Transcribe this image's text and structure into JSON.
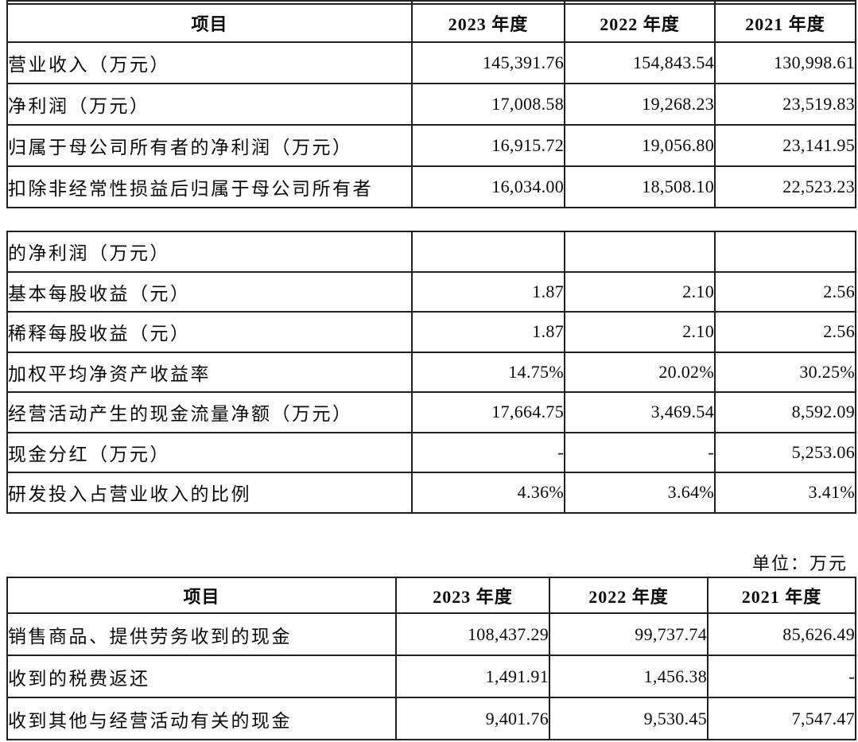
{
  "unit_label": "单位：万元",
  "summary_table": {
    "headers": {
      "item": "项目",
      "y2023": "2023 年度",
      "y2022": "2022 年度",
      "y2021": "2021 年度"
    },
    "rows": [
      {
        "label": "营业收入（万元）",
        "v2023": "145,391.76",
        "v2022": "154,843.54",
        "v2021": "130,998.61"
      },
      {
        "label": "净利润（万元）",
        "v2023": "17,008.58",
        "v2022": "19,268.23",
        "v2021": "23,519.83"
      },
      {
        "label": "归属于母公司所有者的净利润（万元）",
        "v2023": "16,915.72",
        "v2022": "19,056.80",
        "v2021": "23,141.95"
      },
      {
        "label": "扣除非经常性损益后归属于母公司所有者",
        "v2023": "16,034.00",
        "v2022": "18,508.10",
        "v2021": "22,523.23"
      }
    ]
  },
  "summary_table_continued": {
    "rows": [
      {
        "label": "的净利润（万元）",
        "v2023": "",
        "v2022": "",
        "v2021": ""
      },
      {
        "label": "基本每股收益（元）",
        "v2023": "1.87",
        "v2022": "2.10",
        "v2021": "2.56"
      },
      {
        "label": "稀释每股收益（元）",
        "v2023": "1.87",
        "v2022": "2.10",
        "v2021": "2.56"
      },
      {
        "label": "加权平均净资产收益率",
        "v2023": "14.75%",
        "v2022": "20.02%",
        "v2021": "30.25%"
      },
      {
        "label": "经营活动产生的现金流量净额（万元）",
        "v2023": "17,664.75",
        "v2022": "3,469.54",
        "v2021": "8,592.09"
      },
      {
        "label": "现金分红（万元）",
        "v2023": "-",
        "v2022": "-",
        "v2021": "5,253.06"
      },
      {
        "label": "研发投入占营业收入的比例",
        "v2023": "4.36%",
        "v2022": "3.64%",
        "v2021": "3.41%"
      }
    ]
  },
  "cashflow_table": {
    "headers": {
      "item": "项目",
      "y2023": "2023 年度",
      "y2022": "2022 年度",
      "y2021": "2021 年度"
    },
    "rows": [
      {
        "label": "销售商品、提供劳务收到的现金",
        "v2023": "108,437.29",
        "v2022": "99,737.74",
        "v2021": "85,626.49"
      },
      {
        "label": "收到的税费返还",
        "v2023": "1,491.91",
        "v2022": "1,456.38",
        "v2021": "-"
      },
      {
        "label": "收到其他与经营活动有关的现金",
        "v2023": "9,401.76",
        "v2022": "9,530.45",
        "v2021": "7,547.47"
      }
    ]
  }
}
